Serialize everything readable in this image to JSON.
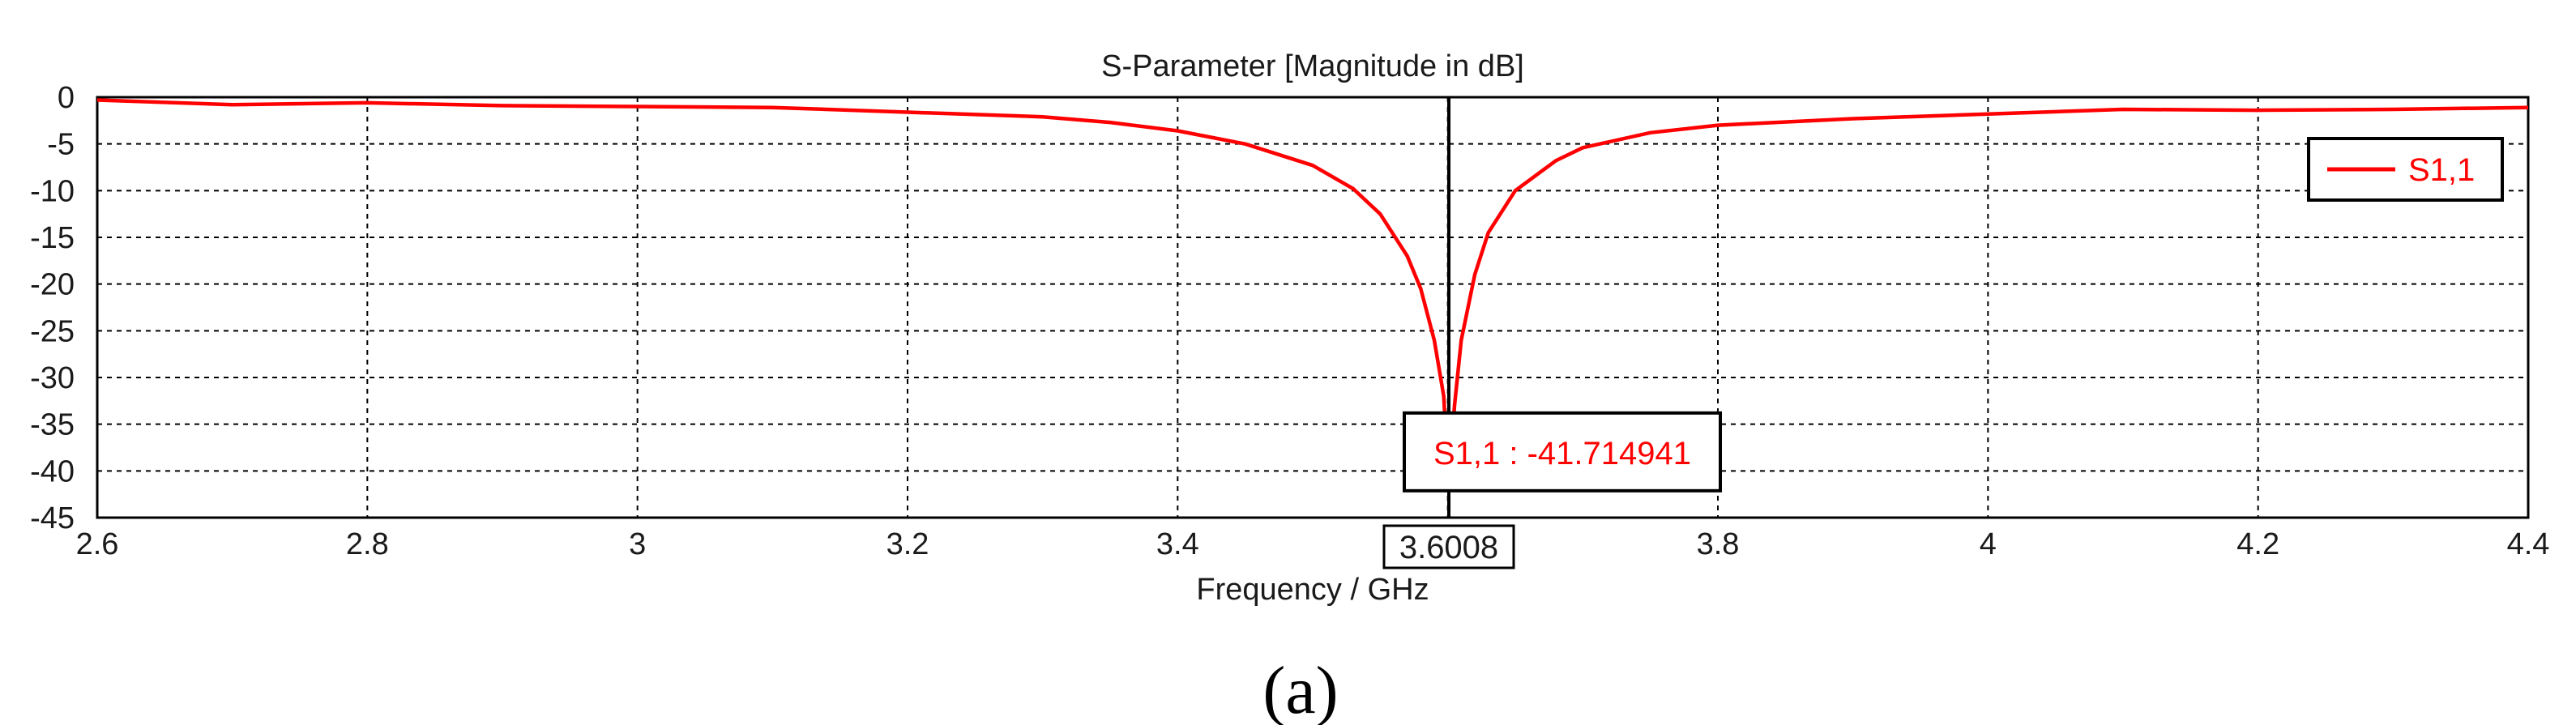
{
  "chart_data": {
    "type": "line",
    "title": "S-Parameter [Magnitude in dB]",
    "xlabel": "Frequency / GHz",
    "ylabel": "",
    "xlim": [
      2.6,
      4.4
    ],
    "ylim": [
      -45,
      0
    ],
    "grid": true,
    "x_ticks": [
      "2.6",
      "2.8",
      "3",
      "3.2",
      "3.4",
      "3.6",
      "3.8",
      "4",
      "4.2",
      "4.4"
    ],
    "x_tick_values": [
      2.6,
      2.8,
      3.0,
      3.2,
      3.4,
      3.6,
      3.8,
      4.0,
      4.2,
      4.4
    ],
    "y_ticks": [
      "0",
      "-5",
      "-10",
      "-15",
      "-20",
      "-25",
      "-30",
      "-35",
      "-40",
      "-45"
    ],
    "y_tick_values": [
      0,
      -5,
      -10,
      -15,
      -20,
      -25,
      -30,
      -35,
      -40,
      -45
    ],
    "legend": {
      "position": "top-right",
      "entries": [
        "S1,1"
      ]
    },
    "series": [
      {
        "name": "S1,1",
        "color": "#ff0000",
        "x": [
          2.6,
          2.7,
          2.8,
          2.9,
          3.0,
          3.1,
          3.2,
          3.3,
          3.35,
          3.4,
          3.45,
          3.5,
          3.53,
          3.55,
          3.57,
          3.58,
          3.59,
          3.597,
          3.6008,
          3.605,
          3.61,
          3.62,
          3.63,
          3.65,
          3.68,
          3.7,
          3.75,
          3.8,
          3.9,
          4.0,
          4.1,
          4.2,
          4.3,
          4.4
        ],
        "values": [
          -0.3,
          -0.8,
          -0.6,
          -0.9,
          -1.0,
          -1.1,
          -1.6,
          -2.1,
          -2.7,
          -3.6,
          -5.0,
          -7.3,
          -9.8,
          -12.5,
          -17.0,
          -20.5,
          -26.0,
          -32.0,
          -41.7,
          -33.0,
          -26.0,
          -19.0,
          -14.5,
          -10.0,
          -6.8,
          -5.4,
          -3.8,
          -3.0,
          -2.3,
          -1.8,
          -1.3,
          -1.4,
          -1.3,
          -1.1
        ]
      }
    ],
    "marker": {
      "x": 3.6008,
      "x_label": "3.6008",
      "label": "S1,1 : -41.714941",
      "value": -41.714941
    }
  },
  "caption": "(a)"
}
